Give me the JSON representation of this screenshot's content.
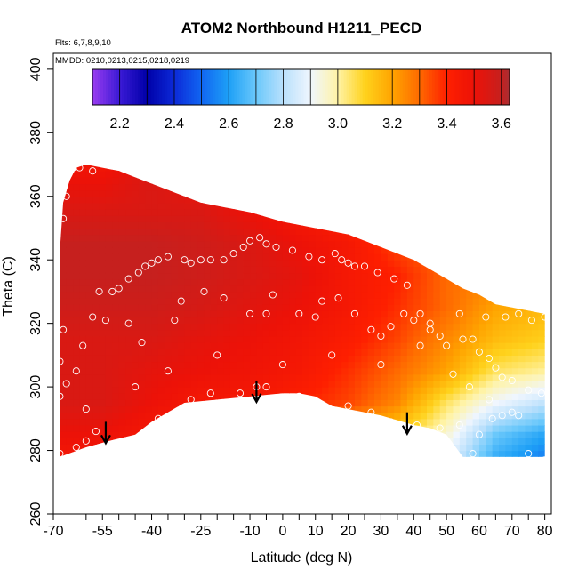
{
  "chart_data": {
    "type": "heatmap",
    "title": "ATOM2 Northbound H1211_PECD",
    "subtitle": "Flts: 6,7,8,9,10",
    "annotation": "MMDD: 0210,0213,0215,0218,0219",
    "xlabel": "Latitude (deg N)",
    "ylabel": "Theta (C)",
    "xlim": [
      -70,
      82
    ],
    "ylim": [
      260,
      405
    ],
    "x_ticks": [
      -70,
      -55,
      -40,
      -25,
      -10,
      0,
      10,
      20,
      30,
      40,
      50,
      60,
      70,
      80
    ],
    "x_tick_labels": [
      "-70",
      "-55",
      "-40",
      "-25",
      "-10",
      "0",
      "10",
      "20",
      "30",
      "40",
      "50",
      "60",
      "70",
      "80"
    ],
    "x_minor_ticks": [
      -60,
      -50,
      -45,
      -35,
      -30,
      -20,
      -15,
      -5,
      5,
      15,
      25,
      35,
      45,
      55,
      65,
      75
    ],
    "y_ticks": [
      260,
      280,
      300,
      320,
      340,
      360,
      380,
      400
    ],
    "y_tick_labels": [
      "260",
      "280",
      "300",
      "320",
      "340",
      "360",
      "380",
      "400"
    ],
    "colorbar": {
      "min": 2.1,
      "max": 3.63,
      "ticks": [
        2.2,
        2.4,
        2.6,
        2.8,
        3.0,
        3.2,
        3.4,
        3.6
      ],
      "tick_labels": [
        "2.2",
        "2.4",
        "2.6",
        "2.8",
        "3.0",
        "3.2",
        "3.4",
        "3.6"
      ],
      "stops": [
        {
          "v": 2.1,
          "color": "#9a3cf0"
        },
        {
          "v": 2.2,
          "color": "#3b1ad6"
        },
        {
          "v": 2.3,
          "color": "#0000a8"
        },
        {
          "v": 2.4,
          "color": "#0c2ad8"
        },
        {
          "v": 2.5,
          "color": "#1166f2"
        },
        {
          "v": 2.6,
          "color": "#1ea0f6"
        },
        {
          "v": 2.7,
          "color": "#6ac8fb"
        },
        {
          "v": 2.8,
          "color": "#b9e0fc"
        },
        {
          "v": 2.9,
          "color": "#f0f6fe"
        },
        {
          "v": 3.0,
          "color": "#fff3a6"
        },
        {
          "v": 3.1,
          "color": "#ffd21c"
        },
        {
          "v": 3.2,
          "color": "#ffa400"
        },
        {
          "v": 3.3,
          "color": "#ff6a00"
        },
        {
          "v": 3.4,
          "color": "#fe1f00"
        },
        {
          "v": 3.5,
          "color": "#ec1208"
        },
        {
          "v": 3.6,
          "color": "#c6201e"
        },
        {
          "v": 3.63,
          "color": "#a82e33"
        }
      ]
    },
    "field_outline": {
      "top": [
        [
          -68,
          343
        ],
        [
          -67,
          358
        ],
        [
          -65,
          365
        ],
        [
          -63,
          369
        ],
        [
          -60,
          370
        ],
        [
          -55,
          369
        ],
        [
          -50,
          368
        ],
        [
          -45,
          366
        ],
        [
          -40,
          364
        ],
        [
          -30,
          360
        ],
        [
          -25,
          358
        ],
        [
          -20,
          357
        ],
        [
          -10,
          355
        ],
        [
          0,
          352
        ],
        [
          10,
          350
        ],
        [
          20,
          348
        ],
        [
          30,
          344
        ],
        [
          40,
          340
        ],
        [
          45,
          337
        ],
        [
          50,
          334
        ],
        [
          55,
          331
        ],
        [
          60,
          329
        ],
        [
          65,
          326
        ],
        [
          70,
          325
        ],
        [
          75,
          324
        ],
        [
          80,
          323
        ]
      ],
      "bottom": [
        [
          -68,
          278
        ],
        [
          -60,
          281
        ],
        [
          -53,
          283
        ],
        [
          -45,
          285
        ],
        [
          -40,
          289
        ],
        [
          -30,
          295
        ],
        [
          -20,
          296
        ],
        [
          -10,
          297
        ],
        [
          0,
          298
        ],
        [
          5,
          298
        ],
        [
          10,
          297
        ],
        [
          15,
          294
        ],
        [
          20,
          293
        ],
        [
          30,
          291
        ],
        [
          40,
          288
        ],
        [
          45,
          287
        ],
        [
          50,
          285
        ],
        [
          55,
          278
        ],
        [
          80,
          278
        ]
      ]
    },
    "field_values": {
      "lat": [
        -70,
        -55,
        -40,
        -25,
        -10,
        5,
        20,
        35,
        50,
        65,
        82
      ],
      "theta": [
        275,
        285,
        295,
        305,
        315,
        325,
        335,
        345,
        355,
        365,
        375
      ],
      "grid": [
        [
          3.45,
          3.45,
          3.4,
          3.3,
          3.2,
          3.1,
          3.05,
          3.0,
          2.85,
          2.6,
          2.5
        ],
        [
          3.5,
          3.5,
          3.45,
          3.4,
          3.35,
          3.3,
          3.2,
          3.1,
          2.95,
          2.7,
          2.6
        ],
        [
          3.55,
          3.55,
          3.5,
          3.45,
          3.45,
          3.4,
          3.35,
          3.25,
          3.05,
          2.9,
          2.8
        ],
        [
          3.55,
          3.55,
          3.52,
          3.5,
          3.48,
          3.45,
          3.38,
          3.3,
          3.2,
          3.05,
          3.0
        ],
        [
          3.55,
          3.55,
          3.55,
          3.52,
          3.5,
          3.47,
          3.42,
          3.35,
          3.25,
          3.15,
          3.1
        ],
        [
          3.58,
          3.58,
          3.58,
          3.56,
          3.53,
          3.5,
          3.45,
          3.38,
          3.3,
          3.2,
          3.15
        ],
        [
          3.6,
          3.6,
          3.6,
          3.58,
          3.55,
          3.52,
          3.45,
          3.4,
          3.3,
          3.25,
          3.2
        ],
        [
          3.6,
          3.6,
          3.6,
          3.58,
          3.55,
          3.5,
          3.45,
          3.35,
          3.3,
          3.25,
          3.2
        ],
        [
          3.55,
          3.55,
          3.55,
          3.55,
          3.5,
          3.45,
          3.4,
          3.3,
          3.3,
          3.25,
          3.2
        ],
        [
          3.5,
          3.5,
          3.55,
          3.5,
          3.45,
          3.4,
          3.3,
          3.25,
          3.2,
          3.2,
          3.2
        ],
        [
          3.45,
          3.45,
          3.5,
          3.45,
          3.4,
          3.35,
          3.25,
          3.2,
          3.15,
          3.15,
          3.15
        ]
      ]
    },
    "sample_points": [
      [
        -64,
        369
      ],
      [
        -62,
        369
      ],
      [
        -58,
        368
      ],
      [
        -66,
        360
      ],
      [
        -67,
        353
      ],
      [
        -69,
        343
      ],
      [
        -69,
        333
      ],
      [
        -67,
        318
      ],
      [
        -68,
        308
      ],
      [
        -66,
        301
      ],
      [
        -68,
        297
      ],
      [
        -68,
        279
      ],
      [
        -63,
        281
      ],
      [
        -60,
        283
      ],
      [
        -57,
        286
      ],
      [
        -60,
        293
      ],
      [
        -63,
        305
      ],
      [
        -61,
        313
      ],
      [
        -58,
        322
      ],
      [
        -56,
        330
      ],
      [
        -52,
        330
      ],
      [
        -50,
        331
      ],
      [
        -47,
        334
      ],
      [
        -44,
        336
      ],
      [
        -42,
        338
      ],
      [
        -40,
        339
      ],
      [
        -38,
        340
      ],
      [
        -35,
        341
      ],
      [
        -30,
        340
      ],
      [
        -28,
        339
      ],
      [
        -25,
        340
      ],
      [
        -22,
        340
      ],
      [
        -18,
        340
      ],
      [
        -15,
        342
      ],
      [
        -12,
        344
      ],
      [
        -10,
        346
      ],
      [
        -7,
        347
      ],
      [
        -5,
        345
      ],
      [
        -2,
        344
      ],
      [
        3,
        343
      ],
      [
        8,
        341
      ],
      [
        12,
        340
      ],
      [
        16,
        342
      ],
      [
        18,
        340
      ],
      [
        20,
        339
      ],
      [
        22,
        338
      ],
      [
        25,
        338
      ],
      [
        29,
        336
      ],
      [
        34,
        334
      ],
      [
        38,
        332
      ],
      [
        -54,
        321
      ],
      [
        -47,
        320
      ],
      [
        -43,
        314
      ],
      [
        -33,
        321
      ],
      [
        -31,
        327
      ],
      [
        -24,
        330
      ],
      [
        -18,
        328
      ],
      [
        -10,
        323
      ],
      [
        -5,
        323
      ],
      [
        -3,
        329
      ],
      [
        5,
        323
      ],
      [
        10,
        322
      ],
      [
        12,
        327
      ],
      [
        17,
        328
      ],
      [
        22,
        323
      ],
      [
        27,
        318
      ],
      [
        30,
        316
      ],
      [
        33,
        319
      ],
      [
        37,
        323
      ],
      [
        40,
        321
      ],
      [
        42,
        323
      ],
      [
        45,
        320
      ],
      [
        48,
        316
      ],
      [
        50,
        313
      ],
      [
        55,
        315
      ],
      [
        58,
        315
      ],
      [
        60,
        311
      ],
      [
        63,
        309
      ],
      [
        65,
        306
      ],
      [
        67,
        303
      ],
      [
        70,
        302
      ],
      [
        75,
        299
      ],
      [
        79,
        298
      ],
      [
        68,
        322
      ],
      [
        72,
        323
      ],
      [
        76,
        321
      ],
      [
        80,
        322
      ],
      [
        -38,
        290
      ],
      [
        -28,
        296
      ],
      [
        -22,
        298
      ],
      [
        -13,
        298
      ],
      [
        -8,
        300
      ],
      [
        -5,
        300
      ],
      [
        5,
        297
      ],
      [
        10,
        294
      ],
      [
        20,
        294
      ],
      [
        27,
        292
      ],
      [
        33,
        289
      ],
      [
        41,
        288
      ],
      [
        48,
        287
      ],
      [
        54,
        288
      ],
      [
        60,
        285
      ],
      [
        64,
        290
      ],
      [
        67,
        291
      ],
      [
        70,
        292
      ],
      [
        72,
        291
      ],
      [
        75,
        279
      ],
      [
        80,
        277
      ],
      [
        58,
        279
      ],
      [
        45,
        318
      ],
      [
        54,
        323
      ],
      [
        62,
        322
      ],
      [
        30,
        307
      ],
      [
        15,
        310
      ],
      [
        0,
        307
      ],
      [
        -20,
        310
      ],
      [
        -35,
        305
      ],
      [
        -45,
        300
      ],
      [
        42,
        313
      ],
      [
        52,
        304
      ],
      [
        57,
        300
      ],
      [
        63,
        296
      ]
    ],
    "arrows": [
      {
        "lat": -54,
        "theta": 289
      },
      {
        "lat": -8,
        "theta": 302
      },
      {
        "lat": 38,
        "theta": 292
      }
    ]
  }
}
